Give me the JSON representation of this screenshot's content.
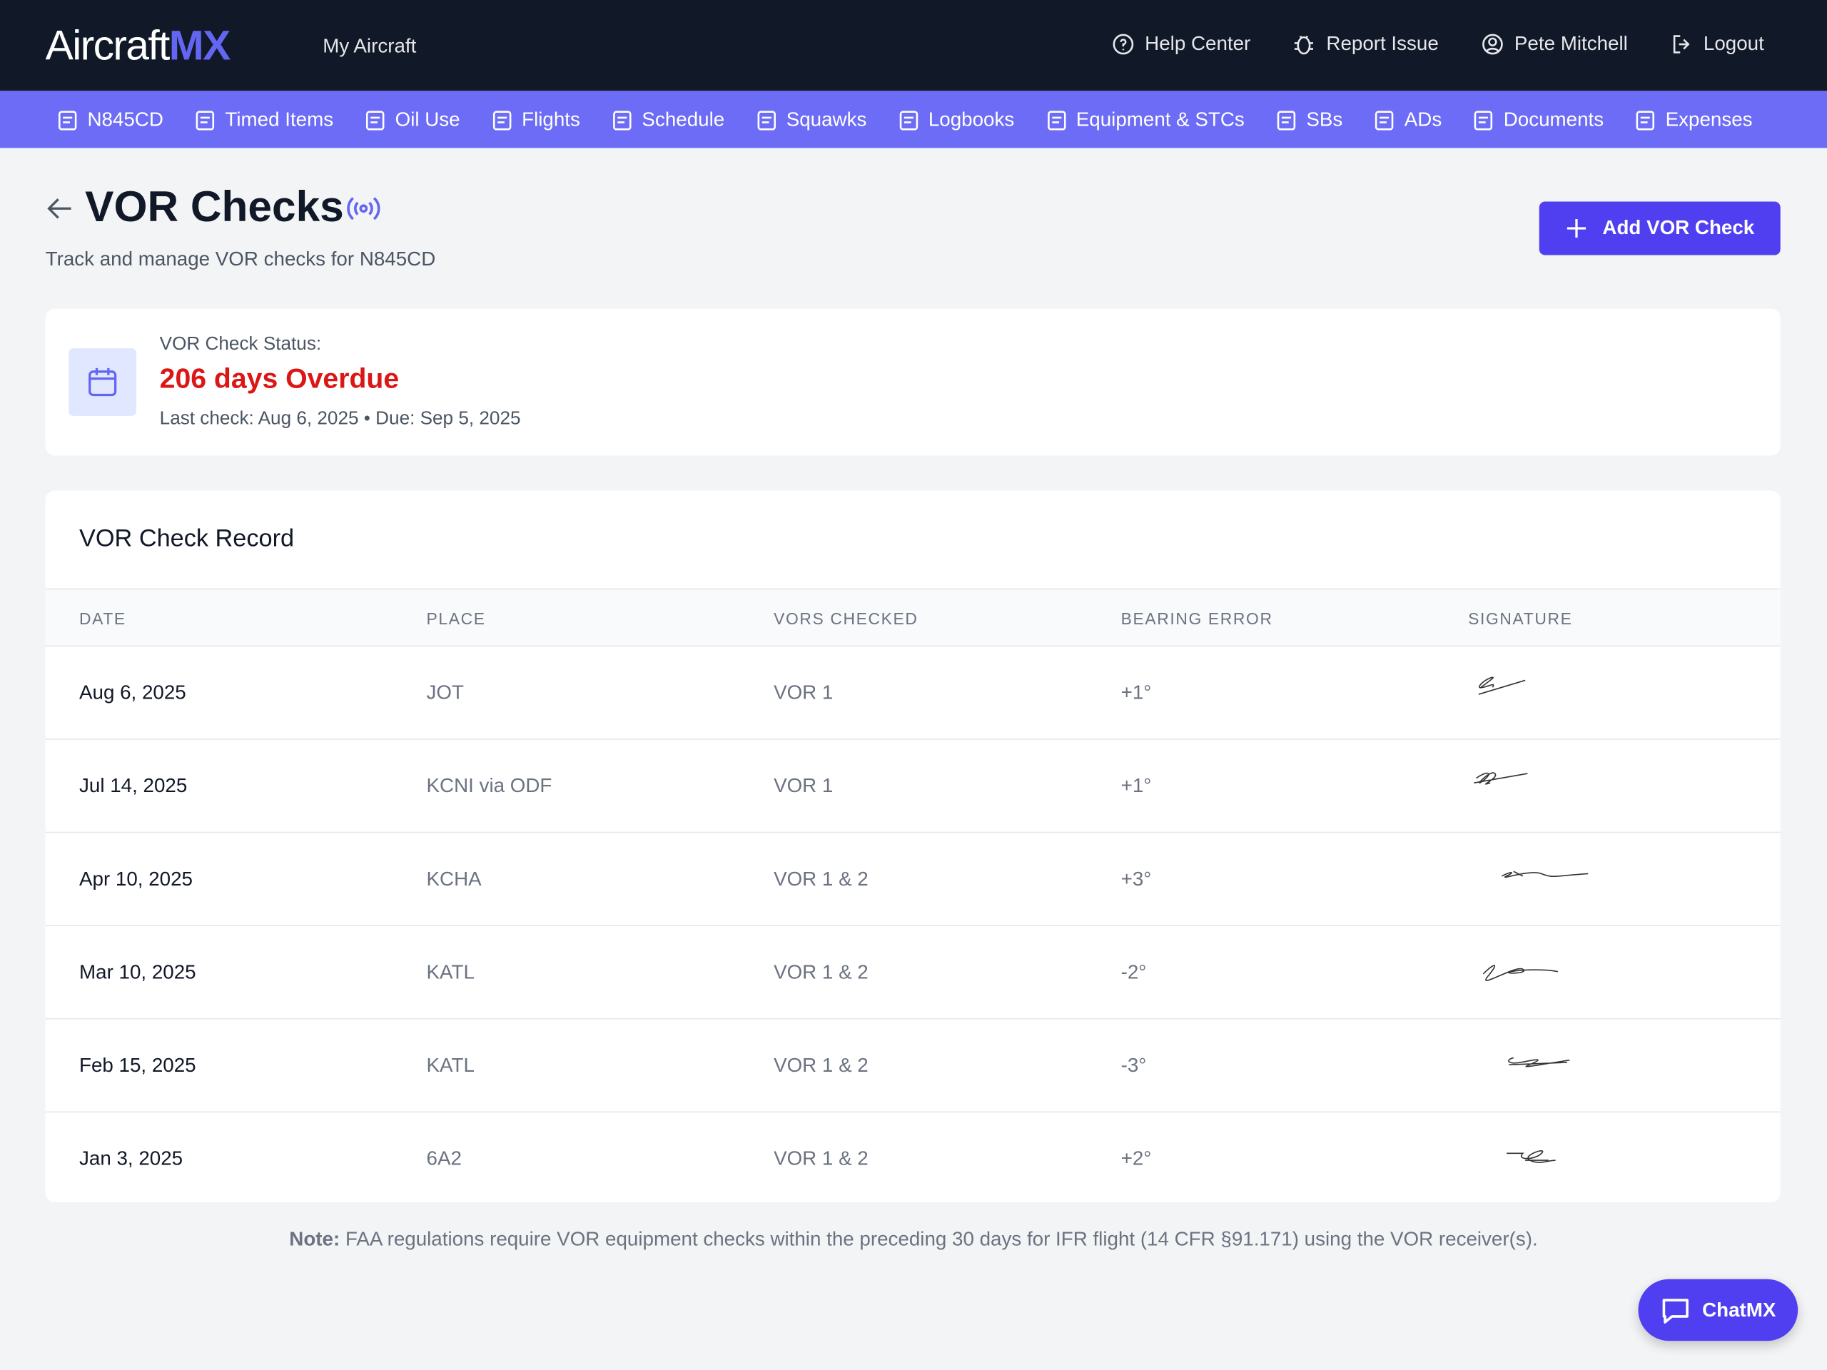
{
  "header": {
    "logo": {
      "main": "Aircraft",
      "accent": "MX"
    },
    "nav_link": "My Aircraft",
    "actions": [
      "Help Center",
      "Report Issue",
      "Pete Mitchell",
      "Logout"
    ]
  },
  "tabs": [
    "N845CD",
    "Timed Items",
    "Oil Use",
    "Flights",
    "Schedule",
    "Squawks",
    "Logbooks",
    "Equipment & STCs",
    "SBs",
    "ADs",
    "Documents",
    "Expenses"
  ],
  "page": {
    "title": "VOR Checks",
    "subtitle": "Track and manage VOR checks for N845CD",
    "add_button": "Add VOR Check"
  },
  "status": {
    "label": "VOR Check Status:",
    "value": "206 days Overdue",
    "detail": "Last check: Aug 6, 2025 • Due: Sep 5, 2025"
  },
  "table": {
    "title": "VOR Check Record",
    "columns": [
      "DATE",
      "PLACE",
      "VORS CHECKED",
      "BEARING ERROR",
      "SIGNATURE"
    ],
    "rows": [
      [
        "Aug 6, 2025",
        "JOT",
        "VOR 1",
        "+1°"
      ],
      [
        "Jul 14, 2025",
        "KCNI via ODF",
        "VOR 1",
        "+1°"
      ],
      [
        "Apr 10, 2025",
        "KCHA",
        "VOR 1 & 2",
        "+3°"
      ],
      [
        "Mar 10, 2025",
        "KATL",
        "VOR 1 & 2",
        "-2°"
      ],
      [
        "Feb 15, 2025",
        "KATL",
        "VOR 1 & 2",
        "-3°"
      ],
      [
        "Jan 3, 2025",
        "6A2",
        "VOR 1 & 2",
        "+2°"
      ]
    ]
  },
  "note": {
    "label": "Note:",
    "text": "FAA regulations require VOR equipment checks within the preceding 30 days for IFR flight (14 CFR §91.171) using the VOR receiver(s)."
  },
  "chat_button": "ChatMX"
}
